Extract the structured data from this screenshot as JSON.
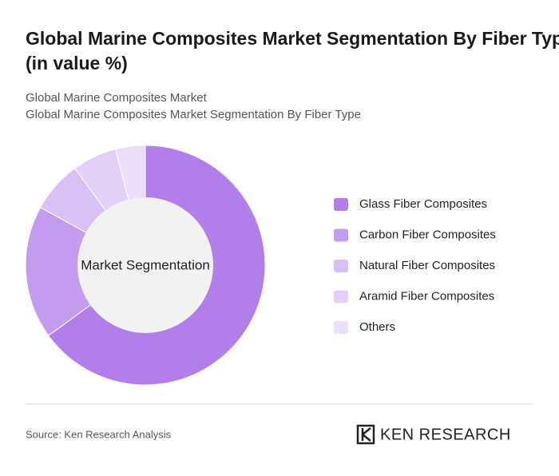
{
  "chart_data": {
    "type": "donut",
    "title": "Global Marine Composites Market Segmentation By Fiber Type (in value %)",
    "subtitle": [
      "Global Marine Composites Market",
      "Global Marine Composites Market Segmentation By Fiber Type"
    ],
    "center_label": "Market Segmentation",
    "categories": [
      "Glass Fiber Composites",
      "Carbon Fiber Composites",
      "Natural Fiber Composites",
      "Aramid Fiber Composites",
      "Others"
    ],
    "values": [
      65,
      18,
      7,
      6,
      4
    ],
    "colors": [
      "#b27fea",
      "#c49cef",
      "#d9c1f5",
      "#e3d0f7",
      "#ebdff9"
    ]
  },
  "footer": {
    "source": "Source: Ken Research Analysis",
    "brand": "KEN RESEARCH"
  }
}
